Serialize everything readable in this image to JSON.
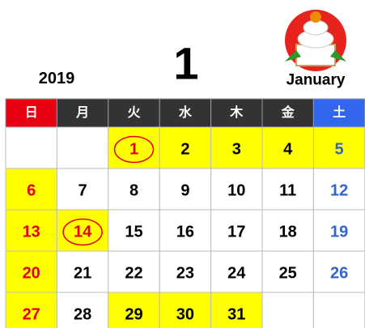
{
  "header": {
    "year": "2019",
    "month": "1",
    "month_name": "January"
  },
  "weekdays": [
    "日",
    "月",
    "火",
    "水",
    "木",
    "金",
    "土"
  ],
  "weeks": [
    [
      {
        "day": null,
        "highlight": false
      },
      {
        "day": null,
        "highlight": false
      },
      {
        "day": 1,
        "highlight": true,
        "holiday": true
      },
      {
        "day": 2,
        "highlight": true
      },
      {
        "day": 3,
        "highlight": true
      },
      {
        "day": 4,
        "highlight": true
      },
      {
        "day": 5,
        "highlight": true
      }
    ],
    [
      {
        "day": 6,
        "highlight": true
      },
      {
        "day": 7,
        "highlight": false
      },
      {
        "day": 8,
        "highlight": false
      },
      {
        "day": 9,
        "highlight": false
      },
      {
        "day": 10,
        "highlight": false
      },
      {
        "day": 11,
        "highlight": false
      },
      {
        "day": 12,
        "highlight": false
      }
    ],
    [
      {
        "day": 13,
        "highlight": true
      },
      {
        "day": 14,
        "highlight": true,
        "holiday": true
      },
      {
        "day": 15,
        "highlight": false
      },
      {
        "day": 16,
        "highlight": false
      },
      {
        "day": 17,
        "highlight": false
      },
      {
        "day": 18,
        "highlight": false
      },
      {
        "day": 19,
        "highlight": false
      }
    ],
    [
      {
        "day": 20,
        "highlight": true
      },
      {
        "day": 21,
        "highlight": false
      },
      {
        "day": 22,
        "highlight": false
      },
      {
        "day": 23,
        "highlight": false
      },
      {
        "day": 24,
        "highlight": false
      },
      {
        "day": 25,
        "highlight": false
      },
      {
        "day": 26,
        "highlight": false
      }
    ],
    [
      {
        "day": 27,
        "highlight": true
      },
      {
        "day": 28,
        "highlight": false
      },
      {
        "day": 29,
        "highlight": true
      },
      {
        "day": 30,
        "highlight": true
      },
      {
        "day": 31,
        "highlight": true
      },
      {
        "day": null,
        "highlight": false
      },
      {
        "day": null,
        "highlight": false
      }
    ]
  ]
}
